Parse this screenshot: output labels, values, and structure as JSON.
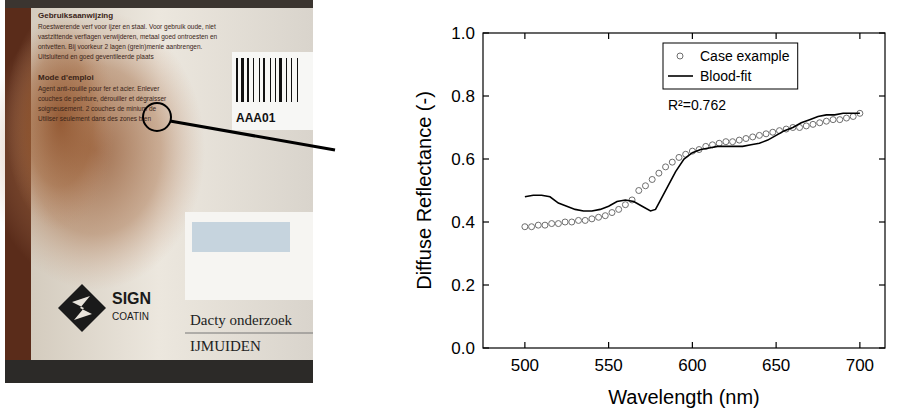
{
  "photo": {
    "heading_nl": "Gebruiksaanwijzing",
    "body_nl": [
      "Roestwerende verf voor ijzer en staal. Voor gebruik oude, niet",
      "vastzittende verflagen verwijderen, metaal goed ontroesten en",
      "ontvetten. Bij voorkeur 2 lagen (grein)menie aanbrengen.",
      "Uitsluitend en goed geventileerde plaats"
    ],
    "heading_fr": "Mode d'emploi",
    "body_fr": [
      "Agent anti-rouille pour fer et acier. Enlever",
      "couches de peinture, dérouiller et dégraisser",
      "soigneusement. 2 couches de minium de",
      "Utiliser seulement dans des zones bien"
    ],
    "barcode": "AAA01",
    "logo": [
      "SIGN",
      "COATIN"
    ],
    "label": [
      "Dacty onderzoek",
      "IJMUIDEN"
    ]
  },
  "chart_data": {
    "type": "line",
    "x_label": "Wavelength (nm)",
    "y_label": "Diffuse Reflectance (-)",
    "annotation": "R²=0.762",
    "xlim": [
      475,
      715
    ],
    "xticks": [
      500,
      550,
      600,
      650,
      700
    ],
    "ylim": [
      0,
      1
    ],
    "yticks": [
      {
        "value": 0,
        "label": "0.0"
      },
      0.2,
      0.4,
      0.6,
      0.8,
      {
        "value": 1,
        "label": "1.0"
      }
    ],
    "grid": false,
    "legend": "upper right",
    "series": [
      {
        "name": "Case example",
        "type": "scatter",
        "marker": "circle",
        "color": "#6e6e6e",
        "x": [
          500,
          504,
          508,
          512,
          516,
          520,
          524,
          528,
          532,
          536,
          540,
          544,
          548,
          552,
          556,
          560,
          564,
          568,
          572,
          576,
          580,
          584,
          588,
          592,
          596,
          600,
          604,
          608,
          612,
          616,
          620,
          624,
          628,
          632,
          636,
          640,
          644,
          648,
          652,
          656,
          660,
          664,
          668,
          672,
          676,
          680,
          684,
          688,
          692,
          696,
          700
        ],
        "values": [
          0.385,
          0.385,
          0.39,
          0.39,
          0.395,
          0.395,
          0.4,
          0.4,
          0.405,
          0.405,
          0.41,
          0.415,
          0.42,
          0.43,
          0.44,
          0.455,
          0.47,
          0.5,
          0.515,
          0.535,
          0.555,
          0.575,
          0.59,
          0.605,
          0.615,
          0.625,
          0.63,
          0.64,
          0.645,
          0.65,
          0.655,
          0.655,
          0.66,
          0.665,
          0.67,
          0.675,
          0.68,
          0.685,
          0.69,
          0.695,
          0.7,
          0.7,
          0.705,
          0.71,
          0.715,
          0.72,
          0.725,
          0.725,
          0.73,
          0.735,
          0.745
        ]
      },
      {
        "name": "Blood-fit",
        "type": "line",
        "line_style": "solid",
        "color": "#000000",
        "x": [
          500,
          505,
          510,
          515,
          520,
          525,
          530,
          535,
          540,
          545,
          550,
          555,
          560,
          565,
          570,
          575,
          578,
          580,
          585,
          590,
          595,
          600,
          605,
          610,
          615,
          620,
          625,
          630,
          635,
          640,
          645,
          650,
          655,
          660,
          665,
          670,
          675,
          680,
          685,
          690,
          695,
          700
        ],
        "values": [
          0.48,
          0.485,
          0.485,
          0.48,
          0.46,
          0.45,
          0.44,
          0.435,
          0.435,
          0.44,
          0.45,
          0.465,
          0.47,
          0.465,
          0.45,
          0.435,
          0.44,
          0.46,
          0.51,
          0.56,
          0.6,
          0.62,
          0.63,
          0.635,
          0.64,
          0.64,
          0.64,
          0.64,
          0.645,
          0.65,
          0.66,
          0.675,
          0.69,
          0.7,
          0.715,
          0.725,
          0.735,
          0.74,
          0.74,
          0.745,
          0.745,
          0.745
        ]
      }
    ]
  }
}
